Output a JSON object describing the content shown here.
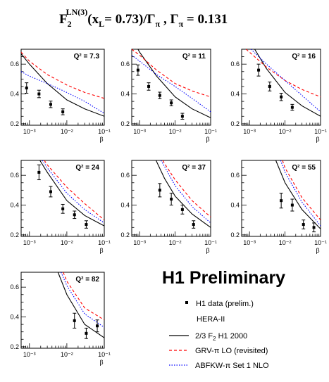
{
  "header": {
    "title_F": "F",
    "title_sub": "2",
    "title_sup": "LN(3)",
    "title_rest": "(x",
    "title_L": "L",
    "title_mid": "= 0.73)/Γ",
    "title_pi1": "π",
    "title_comma": " , Γ",
    "title_pi2": "π",
    "title_end": " = 0.131"
  },
  "preliminary_label": "H1 Preliminary",
  "legend": {
    "h1_data": "H1 data (prelim.)",
    "hera": "HERA-II",
    "h1_2000_prefix": "2/3 F",
    "h1_2000_sub": "2",
    "h1_2000_suffix": "  H1 2000",
    "grv": "GRV-π LO (revisited)",
    "abfkw": "ABFKW-π Set 1 NLO"
  },
  "colors": {
    "data": "#000000",
    "h1_2000": "#000000",
    "grv": "#ff0000",
    "abfkw": "#0000ff"
  },
  "chart_data": [
    {
      "type": "scatter",
      "q2_label": "Q² = 7.3",
      "xlabel": "β",
      "xscale": "log",
      "xlim": [
        0.0006,
        0.1
      ],
      "ylim": [
        0.19,
        0.7
      ],
      "xticks": [
        "10⁻³",
        "10⁻²",
        "10⁻¹"
      ],
      "yticks": [
        "0.2",
        "0.4",
        "0.6"
      ],
      "points": [
        {
          "x": 0.00084,
          "y": 0.44,
          "err": 0.035
        },
        {
          "x": 0.0018,
          "y": 0.4,
          "err": 0.025
        },
        {
          "x": 0.0037,
          "y": 0.33,
          "err": 0.022
        },
        {
          "x": 0.0078,
          "y": 0.28,
          "err": 0.02
        }
      ],
      "series": [
        {
          "name": "2/3 F2 H1 2000",
          "x": [
            0.0006,
            0.001,
            0.003,
            0.01,
            0.03,
            0.1
          ],
          "y": [
            0.67,
            0.6,
            0.47,
            0.36,
            0.3,
            0.25
          ]
        },
        {
          "name": "GRV-π LO (revisited)",
          "x": [
            0.0006,
            0.001,
            0.003,
            0.01,
            0.03,
            0.1
          ],
          "y": [
            0.68,
            0.62,
            0.53,
            0.46,
            0.41,
            0.37
          ]
        },
        {
          "name": "ABFKW-π Set 1 NLO",
          "x": [
            0.0006,
            0.001,
            0.003,
            0.01,
            0.03,
            0.1
          ],
          "y": [
            0.55,
            0.52,
            0.47,
            0.41,
            0.35,
            0.27
          ]
        }
      ]
    },
    {
      "type": "scatter",
      "q2_label": "Q² = 11",
      "xlabel": "β",
      "xscale": "log",
      "xlim": [
        0.0006,
        0.1
      ],
      "ylim": [
        0.19,
        0.7
      ],
      "xticks": [
        "10⁻³",
        "10⁻²",
        "10⁻¹"
      ],
      "yticks": [
        "0.2",
        "0.4",
        "0.6"
      ],
      "points": [
        {
          "x": 0.0009,
          "y": 0.56,
          "err": 0.035
        },
        {
          "x": 0.0018,
          "y": 0.45,
          "err": 0.025
        },
        {
          "x": 0.0037,
          "y": 0.39,
          "err": 0.022
        },
        {
          "x": 0.0078,
          "y": 0.34,
          "err": 0.02
        },
        {
          "x": 0.016,
          "y": 0.25,
          "err": 0.02
        }
      ],
      "series": [
        {
          "name": "2/3 F2 H1 2000",
          "x": [
            0.0009,
            0.001,
            0.003,
            0.01,
            0.03,
            0.1
          ],
          "y": [
            0.7,
            0.68,
            0.52,
            0.38,
            0.3,
            0.24
          ]
        },
        {
          "name": "GRV-π LO (revisited)",
          "x": [
            0.0006,
            0.001,
            0.003,
            0.01,
            0.03,
            0.1
          ],
          "y": [
            0.7,
            0.66,
            0.56,
            0.47,
            0.42,
            0.38
          ]
        },
        {
          "name": "ABFKW-π Set 1 NLO",
          "x": [
            0.0006,
            0.001,
            0.003,
            0.01,
            0.03,
            0.1
          ],
          "y": [
            0.66,
            0.62,
            0.53,
            0.45,
            0.37,
            0.28
          ]
        }
      ]
    },
    {
      "type": "scatter",
      "q2_label": "Q² = 16",
      "xlabel": "β",
      "xscale": "log",
      "xlim": [
        0.0006,
        0.1
      ],
      "ylim": [
        0.19,
        0.7
      ],
      "xticks": [
        "10⁻³",
        "10⁻²",
        "10⁻¹"
      ],
      "yticks": [
        "0.2",
        "0.4",
        "0.6"
      ],
      "points": [
        {
          "x": 0.0018,
          "y": 0.56,
          "err": 0.04
        },
        {
          "x": 0.0037,
          "y": 0.45,
          "err": 0.03
        },
        {
          "x": 0.0078,
          "y": 0.38,
          "err": 0.025
        },
        {
          "x": 0.016,
          "y": 0.31,
          "err": 0.02
        }
      ],
      "series": [
        {
          "name": "2/3 F2 H1 2000",
          "x": [
            0.0014,
            0.003,
            0.01,
            0.03,
            0.1
          ],
          "y": [
            0.7,
            0.57,
            0.41,
            0.32,
            0.25
          ]
        },
        {
          "name": "GRV-π LO (revisited)",
          "x": [
            0.0008,
            0.001,
            0.003,
            0.01,
            0.03,
            0.1
          ],
          "y": [
            0.7,
            0.68,
            0.58,
            0.49,
            0.43,
            0.38
          ]
        },
        {
          "name": "ABFKW-π Set 1 NLO",
          "x": [
            0.0011,
            0.003,
            0.01,
            0.03,
            0.1
          ],
          "y": [
            0.7,
            0.6,
            0.49,
            0.39,
            0.28
          ]
        }
      ]
    },
    {
      "type": "scatter",
      "q2_label": "Q² = 24",
      "xlabel": "β",
      "xscale": "log",
      "xlim": [
        0.0006,
        0.1
      ],
      "ylim": [
        0.19,
        0.7
      ],
      "xticks": [
        "10⁻³",
        "10⁻²",
        "10⁻¹"
      ],
      "yticks": [
        "0.2",
        "0.4",
        "0.6"
      ],
      "points": [
        {
          "x": 0.0018,
          "y": 0.62,
          "err": 0.05
        },
        {
          "x": 0.0037,
          "y": 0.49,
          "err": 0.035
        },
        {
          "x": 0.0078,
          "y": 0.375,
          "err": 0.03
        },
        {
          "x": 0.016,
          "y": 0.335,
          "err": 0.025
        },
        {
          "x": 0.033,
          "y": 0.27,
          "err": 0.025
        }
      ],
      "series": [
        {
          "name": "2/3 F2 H1 2000",
          "x": [
            0.0019,
            0.003,
            0.01,
            0.03,
            0.1
          ],
          "y": [
            0.7,
            0.62,
            0.43,
            0.33,
            0.26
          ]
        },
        {
          "name": "GRV-π LO (revisited)",
          "x": [
            0.0025,
            0.003,
            0.01,
            0.03,
            0.1
          ],
          "y": [
            0.7,
            0.67,
            0.52,
            0.41,
            0.3
          ]
        },
        {
          "name": "ABFKW-π Set 1 NLO",
          "x": [
            0.0022,
            0.003,
            0.01,
            0.03,
            0.1
          ],
          "y": [
            0.7,
            0.65,
            0.48,
            0.37,
            0.28
          ]
        }
      ]
    },
    {
      "type": "scatter",
      "q2_label": "Q² = 37",
      "xlabel": "β",
      "xscale": "log",
      "xlim": [
        0.0006,
        0.1
      ],
      "ylim": [
        0.19,
        0.7
      ],
      "xticks": [
        "10⁻³",
        "10⁻²",
        "10⁻¹"
      ],
      "yticks": [
        "0.2",
        "0.4",
        "0.6"
      ],
      "points": [
        {
          "x": 0.0037,
          "y": 0.5,
          "err": 0.045
        },
        {
          "x": 0.0078,
          "y": 0.44,
          "err": 0.04
        },
        {
          "x": 0.016,
          "y": 0.37,
          "err": 0.03
        },
        {
          "x": 0.033,
          "y": 0.27,
          "err": 0.025
        }
      ],
      "series": [
        {
          "name": "2/3 F2 H1 2000",
          "x": [
            0.0029,
            0.005,
            0.01,
            0.03,
            0.1
          ],
          "y": [
            0.7,
            0.58,
            0.46,
            0.34,
            0.25
          ]
        },
        {
          "name": "GRV-π LO (revisited)",
          "x": [
            0.0045,
            0.005,
            0.01,
            0.03,
            0.1
          ],
          "y": [
            0.7,
            0.68,
            0.57,
            0.43,
            0.32
          ]
        },
        {
          "name": "ABFKW-π Set 1 NLO",
          "x": [
            0.004,
            0.005,
            0.01,
            0.03,
            0.1
          ],
          "y": [
            0.7,
            0.66,
            0.53,
            0.39,
            0.28
          ]
        }
      ]
    },
    {
      "type": "scatter",
      "q2_label": "Q² = 55",
      "xlabel": "β",
      "xscale": "log",
      "xlim": [
        0.0006,
        0.1
      ],
      "ylim": [
        0.19,
        0.7
      ],
      "xticks": [
        "10⁻³",
        "10⁻²",
        "10⁻¹"
      ],
      "yticks": [
        "0.2",
        "0.4",
        "0.6"
      ],
      "points": [
        {
          "x": 0.0078,
          "y": 0.43,
          "err": 0.05
        },
        {
          "x": 0.016,
          "y": 0.4,
          "err": 0.04
        },
        {
          "x": 0.033,
          "y": 0.27,
          "err": 0.03
        },
        {
          "x": 0.065,
          "y": 0.25,
          "err": 0.03
        }
      ],
      "series": [
        {
          "name": "2/3 F2 H1 2000",
          "x": [
            0.0055,
            0.01,
            0.03,
            0.1
          ],
          "y": [
            0.7,
            0.55,
            0.37,
            0.24
          ]
        },
        {
          "name": "GRV-π LO (revisited)",
          "x": [
            0.0085,
            0.01,
            0.03,
            0.1
          ],
          "y": [
            0.7,
            0.65,
            0.45,
            0.3
          ]
        },
        {
          "name": "ABFKW-π Set 1 NLO",
          "x": [
            0.0075,
            0.01,
            0.03,
            0.1
          ],
          "y": [
            0.7,
            0.62,
            0.42,
            0.26
          ]
        }
      ]
    },
    {
      "type": "scatter",
      "q2_label": "Q² = 82",
      "xlabel": "β",
      "xscale": "log",
      "xlim": [
        0.0006,
        0.1
      ],
      "ylim": [
        0.19,
        0.7
      ],
      "xticks": [
        "10⁻³",
        "10⁻²",
        "10⁻¹"
      ],
      "yticks": [
        "0.2",
        "0.4",
        "0.6"
      ],
      "points": [
        {
          "x": 0.016,
          "y": 0.375,
          "err": 0.05
        },
        {
          "x": 0.033,
          "y": 0.29,
          "err": 0.035
        },
        {
          "x": 0.065,
          "y": 0.34,
          "err": 0.04
        }
      ],
      "series": [
        {
          "name": "2/3 F2 H1 2000",
          "x": [
            0.0058,
            0.01,
            0.03,
            0.1
          ],
          "y": [
            0.7,
            0.55,
            0.35,
            0.26
          ]
        },
        {
          "name": "GRV-π LO (revisited)",
          "x": [
            0.008,
            0.01,
            0.03,
            0.1
          ],
          "y": [
            0.7,
            0.64,
            0.46,
            0.38
          ]
        },
        {
          "name": "ABFKW-π Set 1 NLO",
          "x": [
            0.007,
            0.01,
            0.03,
            0.1
          ],
          "y": [
            0.7,
            0.61,
            0.42,
            0.33
          ]
        }
      ]
    }
  ]
}
